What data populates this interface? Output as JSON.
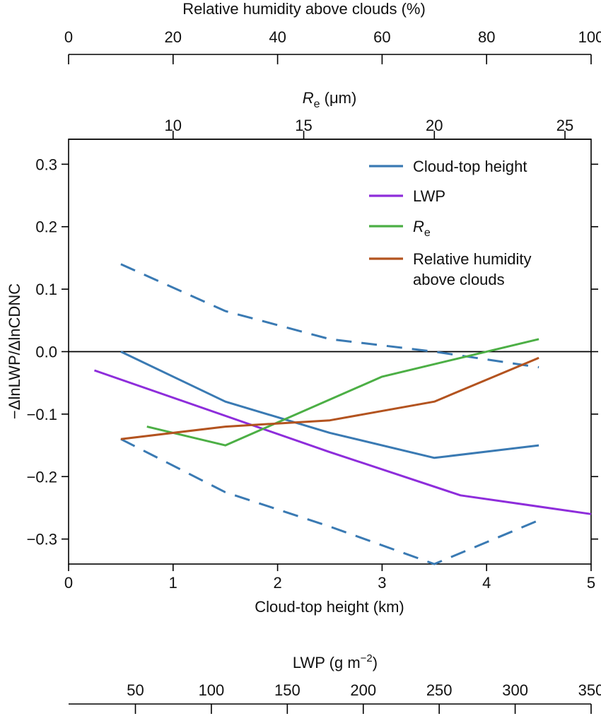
{
  "chart_data": {
    "type": "line",
    "xlabel": "Cloud-top height (km)",
    "ylabel": "−ΔlnLWP/ΔlnCDNC",
    "xlim": [
      0,
      5
    ],
    "ylim": [
      -0.34,
      0.34
    ],
    "xticks": [
      "0",
      "1",
      "2",
      "3",
      "4",
      "5"
    ],
    "yticks": [
      "−0.3",
      "−0.2",
      "−0.1",
      "0.0",
      "0.1",
      "0.2",
      "0.3"
    ],
    "zero_line": true,
    "secondary_axes": {
      "rh": {
        "label": "Relative humidity above clouds (%)",
        "range": [
          0,
          100
        ],
        "ticks": [
          "0",
          "20",
          "40",
          "60",
          "80",
          "100"
        ]
      },
      "re": {
        "label_main": "R",
        "label_sub": "e",
        "label_unit": " (μm)",
        "range": [
          6,
          26
        ],
        "ticks": [
          "10",
          "15",
          "20",
          "25"
        ]
      },
      "lwp": {
        "label_main": "LWP (g m",
        "label_sup": "−2",
        "label_close": ")",
        "range": [
          6,
          350
        ],
        "ticks": [
          "50",
          "100",
          "150",
          "200",
          "250",
          "300",
          "350"
        ]
      }
    },
    "series": [
      {
        "name": "Cloud-top height",
        "color": "#3a7ab3",
        "axis": "Cloud-top height (km)",
        "x": [
          0.5,
          1.5,
          2.5,
          3.5,
          4.5
        ],
        "y": [
          0.0,
          -0.08,
          -0.13,
          -0.17,
          -0.15
        ],
        "ci_upper": [
          0.14,
          0.065,
          0.02,
          0.0,
          -0.025
        ],
        "ci_lower": [
          -0.14,
          -0.225,
          -0.28,
          -0.345,
          -0.27
        ]
      },
      {
        "name": "LWP",
        "color": "#8e2ddb",
        "axis": "LWP (g m−2)",
        "x": [
          23,
          177,
          264,
          350
        ],
        "y": [
          -0.03,
          -0.16,
          -0.23,
          -0.26
        ]
      },
      {
        "name": "R",
        "name_sub": "e",
        "color": "#4caf45",
        "axis": "Re (μm)",
        "x": [
          9,
          12,
          18,
          24
        ],
        "y": [
          -0.12,
          -0.15,
          -0.04,
          0.02
        ]
      },
      {
        "name": "Relative humidity",
        "name_line2": "above clouds",
        "color": "#b3531f",
        "axis": "Relative humidity above clouds (%)",
        "x": [
          10,
          30,
          50,
          70,
          90
        ],
        "y": [
          -0.14,
          -0.12,
          -0.11,
          -0.08,
          -0.01
        ]
      }
    ]
  }
}
